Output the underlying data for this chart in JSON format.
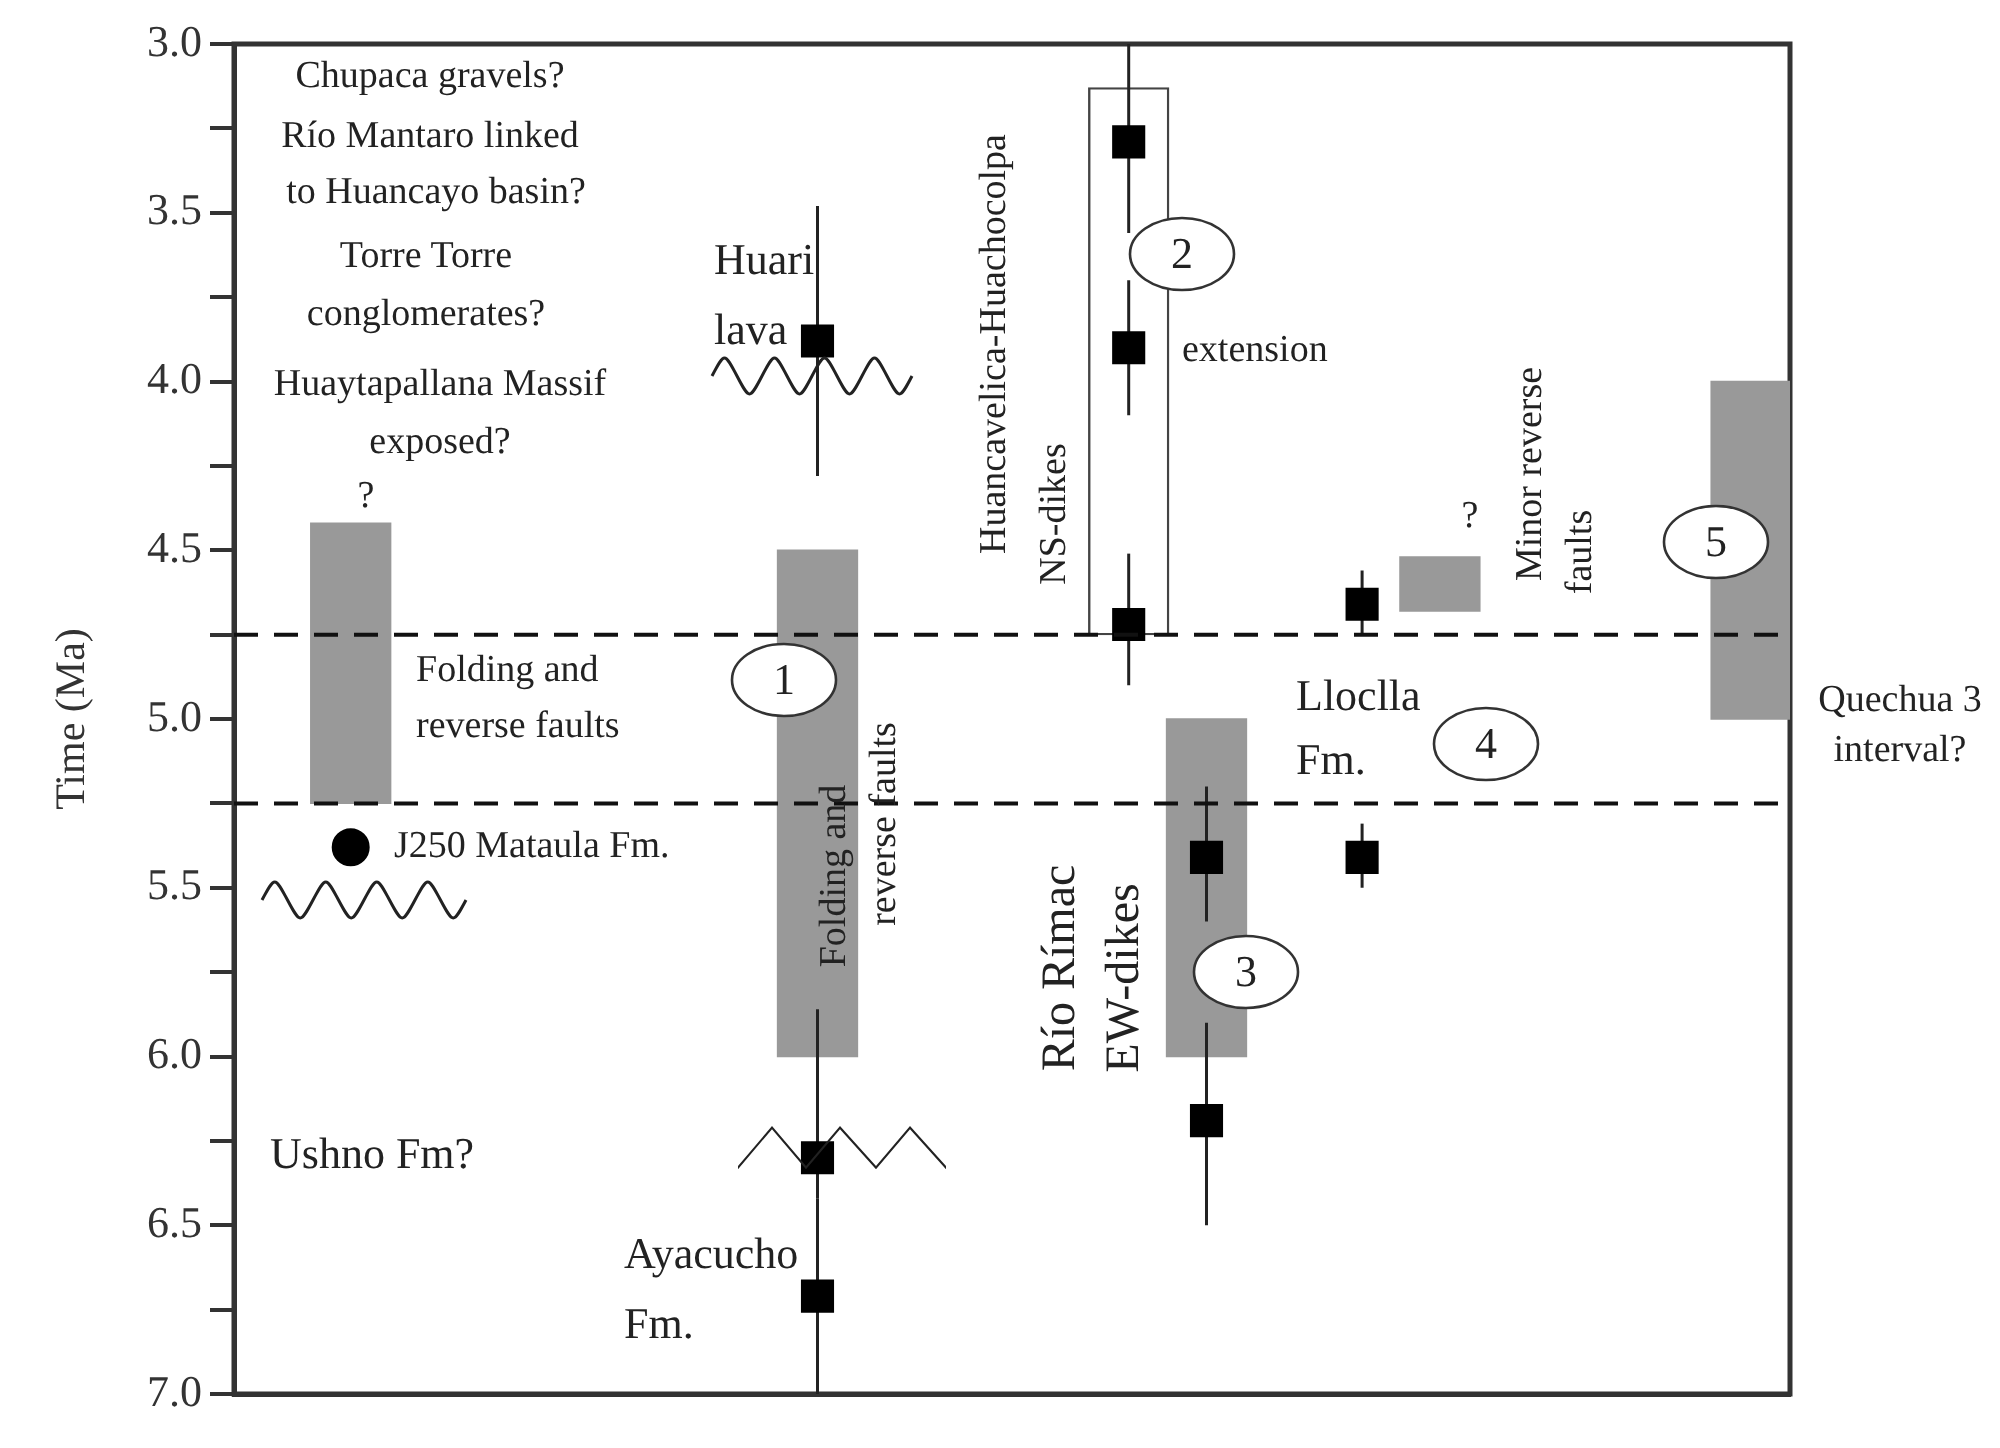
{
  "chart_data": {
    "type": "bar",
    "ylabel": "Time (Ma)",
    "categories": [
      null,
      null,
      null,
      null,
      null,
      null,
      null,
      null,
      null,
      null,
      null,
      null,
      null,
      null,
      null,
      null,
      null,
      null,
      null,
      null
    ],
    "ylim": [
      7.0,
      3.0
    ],
    "yticks": [
      {
        "value": 3,
        "label": "3.0"
      },
      {
        "value": 3.25,
        "label": null
      },
      {
        "value": 3.5,
        "label": "3.5"
      },
      {
        "value": 3.75,
        "label": null
      },
      {
        "value": 4,
        "label": "4.0"
      },
      {
        "value": 4.25,
        "label": null
      },
      {
        "value": 4.5,
        "label": "4.5"
      },
      {
        "value": 4.75,
        "label": null
      },
      {
        "value": 5,
        "label": "5.0"
      },
      {
        "value": 5.25,
        "label": null
      },
      {
        "value": 5.5,
        "label": "5.5"
      },
      {
        "value": 5.75,
        "label": null
      },
      {
        "value": 6,
        "label": "6.0"
      },
      {
        "value": 6.25,
        "label": null
      },
      {
        "value": 6.5,
        "label": "6.5"
      },
      {
        "value": 6.75,
        "label": null
      },
      {
        "value": 7,
        "label": "7.0"
      }
    ],
    "tick_labels": "y",
    "grid": false,
    "series": [
      {
        "color": "#999999",
        "base": [
          null,
          4.42,
          null,
          null,
          null,
          null,
          null,
          4.5,
          null,
          null,
          null,
          null,
          5.0,
          null,
          null,
          4.52,
          null,
          null,
          null,
          4.0
        ],
        "values": [
          null,
          0.83,
          null,
          null,
          null,
          null,
          null,
          1.5,
          null,
          null,
          null,
          null,
          1.0,
          null,
          null,
          0.16,
          null,
          null,
          null,
          1.0
        ]
      },
      {
        "color": "#ffffff",
        "base": [
          null,
          null,
          null,
          null,
          null,
          null,
          null,
          null,
          null,
          null,
          null,
          3.13,
          null,
          null,
          null,
          null,
          null,
          null,
          null,
          null
        ],
        "values": [
          null,
          null,
          null,
          null,
          null,
          null,
          null,
          null,
          null,
          null,
          null,
          1.62,
          null,
          null,
          null,
          null,
          null,
          null,
          null,
          null
        ]
      },
      {
        "type": "scatter",
        "color": "#000000",
        "marker": "square",
        "values": [
          null,
          null,
          null,
          null,
          null,
          null,
          null,
          3.88,
          null,
          null,
          null,
          3.29,
          5.41,
          null,
          4.66,
          null,
          null,
          null,
          null,
          null
        ],
        "errors": [
          null,
          null,
          null,
          null,
          null,
          null,
          null,
          [
            3.48,
            4.28
          ],
          null,
          null,
          null,
          [
            3.0,
            3.56
          ],
          [
            5.2,
            5.6
          ],
          null,
          [
            4.56,
            4.75
          ],
          null,
          null,
          null,
          null,
          null
        ]
      },
      {
        "type": "scatter",
        "color": "#000000",
        "marker": "square",
        "values": [
          null,
          null,
          null,
          null,
          null,
          null,
          null,
          6.3,
          null,
          null,
          null,
          3.9,
          6.19,
          null,
          5.41,
          null,
          null,
          null,
          null,
          null
        ],
        "errors": [
          null,
          null,
          null,
          null,
          null,
          null,
          null,
          [
            5.86,
            6.42
          ],
          null,
          null,
          null,
          [
            3.7,
            4.1
          ],
          [
            5.9,
            6.5
          ],
          null,
          [
            5.31,
            5.5
          ],
          null,
          null,
          null,
          null,
          null
        ]
      },
      {
        "type": "scatter",
        "color": "#000000",
        "marker": "square",
        "values": [
          null,
          null,
          null,
          null,
          null,
          null,
          null,
          6.71,
          null,
          null,
          null,
          4.72,
          null,
          null,
          null,
          null,
          null,
          null,
          null,
          null
        ],
        "errors": [
          null,
          null,
          null,
          null,
          null,
          null,
          null,
          [
            6.42,
            7.0
          ],
          null,
          null,
          null,
          [
            4.51,
            4.9
          ],
          null,
          null,
          null,
          null,
          null,
          null,
          null,
          null
        ]
      },
      {
        "type": "scatter",
        "color": "#000000",
        "marker": "circle",
        "values": [
          null,
          5.38,
          null,
          null,
          null,
          null,
          null,
          null,
          null,
          null,
          null,
          null,
          null,
          null,
          null,
          null,
          null,
          null,
          null,
          null
        ]
      }
    ],
    "ref_lines": [
      {
        "axis": "y",
        "value": 4.75,
        "line_style": "dashed"
      },
      {
        "axis": "y",
        "value": 5.25,
        "line_style": "dashed"
      }
    ],
    "annotations": [
      "Chupaca gravels?",
      "Río Mantaro linked",
      "to Huancayo basin?",
      "Torre Torre",
      "conglomerates?",
      "Huaytapallana Massif",
      "exposed?",
      "?",
      "Huari",
      "lava",
      "Folding and",
      "reverse faults",
      "1",
      "Folding and",
      "reverse faults",
      "J250 Mataula Fm.",
      "Ushno Fm?",
      "Ayacucho",
      "Fm.",
      "Huancavelica-Huachocolpa",
      "NS-dikes",
      "2",
      "extension",
      "?",
      "Minor reverse",
      "faults",
      "5",
      "Lloclla",
      "Fm.",
      "4",
      "Quechua 3",
      "interval?",
      "Río Rímac",
      "EW-dikes",
      "3"
    ]
  }
}
